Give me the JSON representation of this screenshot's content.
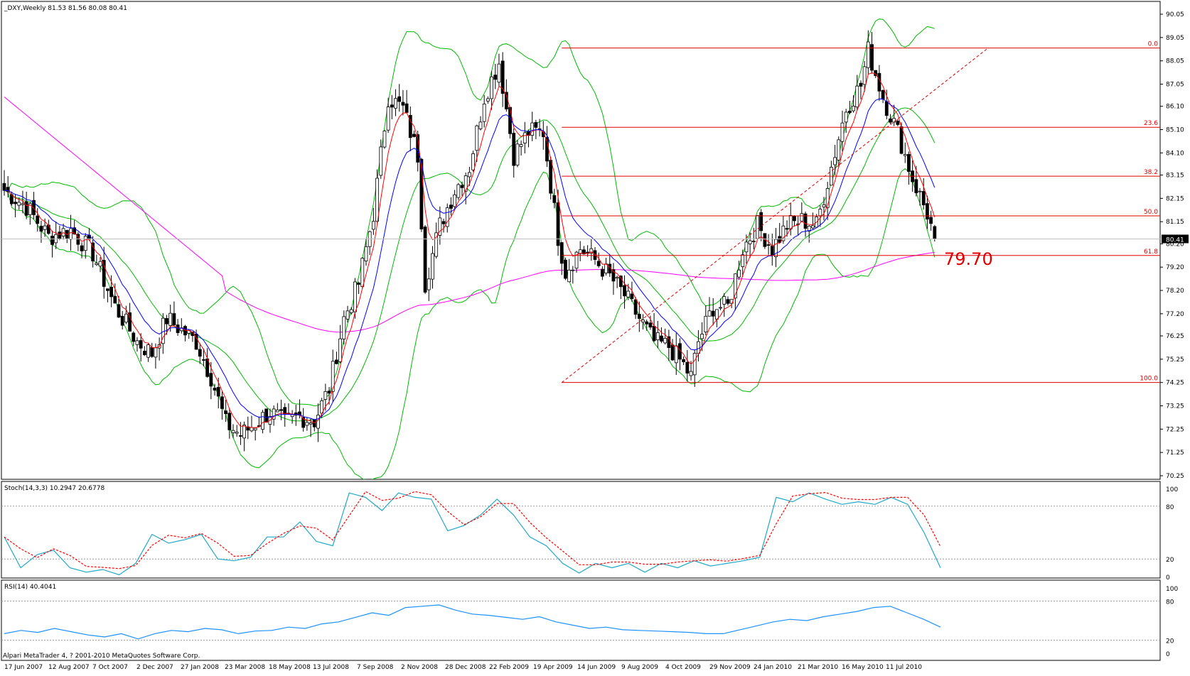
{
  "app": {
    "name": "MetaTrader 4"
  },
  "header": {
    "main": "_DXY,Weekly  81.53 81.56 80.08 80.41",
    "stoch": "Stoch(14,3,3) 10.2947 20.6778",
    "rsi": "RSI(14) 40.4041"
  },
  "footer": {
    "copyright": "Alpari MetaTrader 4, ? 2001-2010 MetaQuotes Software Corp."
  },
  "colors": {
    "background": "#ffffff",
    "bull_candle": "#ffffff",
    "bear_candle": "#000000",
    "ema_fast": "#ff0000",
    "ema_slow": "#0000ff",
    "sma_long": "#ff00ff",
    "bollinger": "#00bb00",
    "fibonacci": "#e00000",
    "stoch_main": "#20a8c8",
    "stoch_signal": "#ff0000",
    "rsi": "#1e90ff"
  },
  "chart_data": [
    {
      "type": "candlestick",
      "name": "_DXY,Weekly",
      "current_price": "80.41",
      "ylim": [
        70.25,
        90.05
      ],
      "y_ticks": [
        "90.05",
        "89.05",
        "88.05",
        "87.05",
        "86.10",
        "85.10",
        "84.10",
        "83.15",
        "82.15",
        "81.15",
        "80.20",
        "79.20",
        "78.20",
        "77.20",
        "76.25",
        "75.25",
        "74.25",
        "73.25",
        "72.25",
        "71.25",
        "70.25"
      ],
      "x_ticks": [
        "17 Jun 2007",
        "12 Aug 2007",
        "7 Oct 2007",
        "2 Dec 2007",
        "27 Jan 2008",
        "23 Mar 2008",
        "18 May 2008",
        "13 Jul 2008",
        "7 Sep 2008",
        "2 Nov 2008",
        "28 Dec 2008",
        "22 Feb 2009",
        "19 Apr 2009",
        "14 Jun 2009",
        "9 Aug 2009",
        "4 Oct 2009",
        "29 Nov 2009",
        "24 Jan 2010",
        "21 Mar 2010",
        "16 May 2010",
        "11 Jul 2010"
      ],
      "close_path": [
        [
          0,
          82.5
        ],
        [
          6,
          81.8
        ],
        [
          12,
          80.5
        ],
        [
          18,
          80.8
        ],
        [
          24,
          79.8
        ],
        [
          30,
          77.5
        ],
        [
          36,
          76.0
        ],
        [
          40,
          75.5
        ],
        [
          44,
          77.0
        ],
        [
          48,
          76.5
        ],
        [
          52,
          76.0
        ],
        [
          56,
          74.5
        ],
        [
          60,
          72.5
        ],
        [
          64,
          72.0
        ],
        [
          68,
          72.5
        ],
        [
          72,
          73.0
        ],
        [
          76,
          72.5
        ],
        [
          80,
          72.8
        ],
        [
          84,
          72.6
        ],
        [
          88,
          74.0
        ],
        [
          92,
          77.0
        ],
        [
          96,
          78.5
        ],
        [
          100,
          81.5
        ],
        [
          104,
          86.5
        ],
        [
          108,
          86.0
        ],
        [
          112,
          84.0
        ],
        [
          114,
          78.5
        ],
        [
          118,
          81.0
        ],
        [
          122,
          82.5
        ],
        [
          126,
          83.5
        ],
        [
          130,
          86.5
        ],
        [
          134,
          88.0
        ],
        [
          138,
          84.0
        ],
        [
          142,
          85.0
        ],
        [
          146,
          85.0
        ],
        [
          150,
          80.5
        ],
        [
          152,
          79.0
        ],
        [
          156,
          80.0
        ],
        [
          160,
          79.5
        ],
        [
          164,
          78.8
        ],
        [
          168,
          78.0
        ],
        [
          172,
          77.0
        ],
        [
          176,
          76.0
        ],
        [
          180,
          75.8
        ],
        [
          184,
          75.0
        ],
        [
          186,
          74.5
        ],
        [
          188,
          76.0
        ],
        [
          192,
          77.5
        ],
        [
          196,
          77.5
        ],
        [
          200,
          80.0
        ],
        [
          204,
          81.0
        ],
        [
          208,
          80.0
        ],
        [
          212,
          81.0
        ],
        [
          216,
          81.2
        ],
        [
          220,
          81.0
        ],
        [
          224,
          83.5
        ],
        [
          228,
          86.0
        ],
        [
          232,
          87.0
        ],
        [
          234,
          88.5
        ],
        [
          238,
          86.5
        ],
        [
          242,
          85.0
        ],
        [
          246,
          83.0
        ],
        [
          250,
          81.5
        ],
        [
          252,
          80.41
        ]
      ],
      "fibonacci": [
        {
          "level": "0.0",
          "price": 88.6
        },
        {
          "level": "23.6",
          "price": 85.2
        },
        {
          "level": "38.2",
          "price": 83.1
        },
        {
          "level": "50.0",
          "price": 81.4
        },
        {
          "level": "61.8",
          "price": 79.7
        },
        {
          "level": "100.0",
          "price": 74.25
        }
      ],
      "annotation": "79.70"
    },
    {
      "type": "line",
      "name": "Stoch(14,3,3)",
      "ylim": [
        0,
        100
      ],
      "y_ticks": [
        "100",
        "80",
        "20",
        "0"
      ],
      "main": 10.2947,
      "signal": 20.6778,
      "series_main": [
        45,
        10,
        25,
        30,
        10,
        5,
        8,
        2,
        15,
        48,
        38,
        42,
        48,
        20,
        18,
        22,
        45,
        45,
        62,
        40,
        35,
        95,
        90,
        75,
        95,
        90,
        88,
        52,
        58,
        70,
        88,
        70,
        45,
        35,
        15,
        4,
        15,
        10,
        15,
        5,
        15,
        10,
        18,
        12,
        15,
        18,
        22,
        90,
        85,
        95,
        88,
        82,
        85,
        82,
        90,
        82,
        50,
        10
      ]
    },
    {
      "type": "line",
      "name": "RSI(14)",
      "ylim": [
        0,
        100
      ],
      "y_ticks": [
        "100",
        "80",
        "20",
        "0"
      ],
      "value": 40.4041,
      "series": [
        30,
        35,
        32,
        38,
        33,
        28,
        25,
        30,
        22,
        30,
        35,
        33,
        38,
        36,
        30,
        34,
        35,
        40,
        38,
        45,
        48,
        55,
        62,
        58,
        70,
        72,
        74,
        66,
        60,
        58,
        55,
        52,
        56,
        48,
        43,
        38,
        40,
        36,
        35,
        34,
        33,
        32,
        30,
        30,
        36,
        42,
        48,
        52,
        50,
        56,
        60,
        64,
        70,
        72,
        62,
        52,
        40
      ]
    }
  ]
}
